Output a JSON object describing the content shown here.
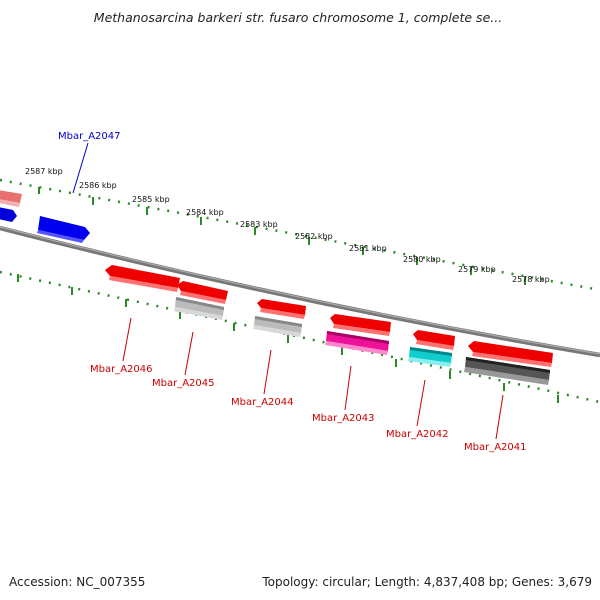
{
  "header": {
    "title": "Methanosarcina barkeri str. fusaro chromosome 1, complete se..."
  },
  "footer": {
    "accession": "Accession: NC_007355",
    "summary": "Topology: circular; Length: 4,837,408 bp; Genes: 3,679"
  },
  "map": {
    "backbone_color": "#777777",
    "tick_color": "#2a8a2a",
    "ticks": [
      {
        "label": "2587 kbp"
      },
      {
        "label": "2586 kbp"
      },
      {
        "label": "2585 kbp"
      },
      {
        "label": "2584 kbp"
      },
      {
        "label": "2583 kbp"
      },
      {
        "label": "2582 kbp"
      },
      {
        "label": "2581 kbp"
      },
      {
        "label": "2580 kbp"
      },
      {
        "label": "2579 kbp"
      },
      {
        "label": "2578 kbp"
      }
    ],
    "gene_labels": [
      {
        "text": "Mbar_A2047",
        "color": "#0000cc"
      },
      {
        "text": "Mbar_A2046",
        "color": "#cc0000"
      },
      {
        "text": "Mbar_A2045",
        "color": "#cc0000"
      },
      {
        "text": "Mbar_A2044",
        "color": "#cc0000"
      },
      {
        "text": "Mbar_A2043",
        "color": "#cc0000"
      },
      {
        "text": "Mbar_A2042",
        "color": "#cc0000"
      },
      {
        "text": "Mbar_A2041",
        "color": "#cc0000"
      }
    ],
    "feature_colors": {
      "forward_gene": "#0000ee",
      "reverse_gene": "#ee0000",
      "partial_gene": "#f08080",
      "cds_gray": "#aaaaaa",
      "cds_magenta": "#ee1199",
      "cds_cyan": "#11cccc",
      "cds_dark": "#555555"
    }
  }
}
